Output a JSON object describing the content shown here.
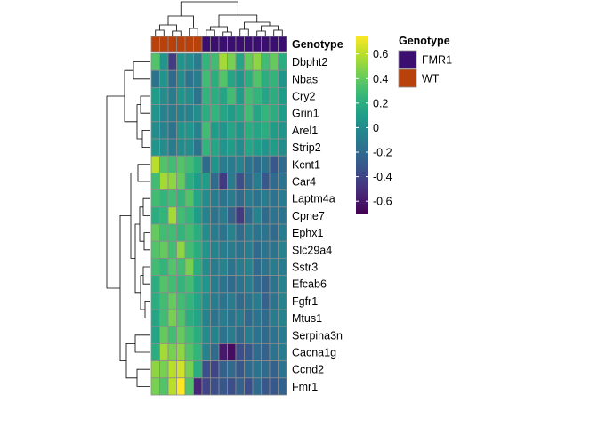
{
  "chart_data": {
    "type": "heatmap",
    "rows": [
      "Dbpht2",
      "Nbas",
      "Cry2",
      "Grin1",
      "Arel1",
      "Strip2",
      "Kcnt1",
      "Car4",
      "Laptm4a",
      "Cpne7",
      "Ephx1",
      "Slc29a4",
      "Sstr3",
      "Efcab6",
      "Fgfr1",
      "Mtus1",
      "Serpina3n",
      "Cacna1g",
      "Ccnd2",
      "Fmr1"
    ],
    "columns": [
      "WT",
      "WT",
      "WT",
      "WT",
      "WT",
      "WT",
      "FMR1",
      "FMR1",
      "FMR1",
      "FMR1",
      "FMR1",
      "FMR1",
      "FMR1",
      "FMR1",
      "FMR1",
      "FMR1"
    ],
    "values": [
      [
        0.35,
        0.05,
        -0.45,
        0.05,
        0.0,
        -0.1,
        0.25,
        0.3,
        0.55,
        0.45,
        0.15,
        0.4,
        0.5,
        0.3,
        0.4,
        0.2
      ],
      [
        -0.15,
        0.05,
        -0.2,
        0.0,
        -0.15,
        -0.1,
        0.3,
        0.2,
        0.35,
        0.15,
        0.05,
        0.2,
        0.35,
        0.2,
        0.25,
        0.05
      ],
      [
        0.1,
        0.0,
        -0.1,
        0.05,
        0.0,
        -0.15,
        0.25,
        0.2,
        0.15,
        0.3,
        0.1,
        0.3,
        0.25,
        0.15,
        0.2,
        0.1
      ],
      [
        0.05,
        -0.05,
        -0.1,
        -0.05,
        -0.05,
        0.0,
        0.2,
        0.25,
        0.15,
        0.1,
        0.15,
        0.3,
        0.15,
        0.25,
        0.2,
        0.1
      ],
      [
        0.0,
        -0.05,
        -0.15,
        0.05,
        0.05,
        -0.05,
        0.3,
        0.1,
        0.05,
        0.15,
        0.05,
        0.2,
        0.15,
        0.2,
        0.1,
        0.05
      ],
      [
        0.05,
        0.0,
        -0.1,
        0.0,
        0.0,
        -0.15,
        0.25,
        0.15,
        0.05,
        0.1,
        0.0,
        0.15,
        0.1,
        0.05,
        0.1,
        0.0
      ],
      [
        0.6,
        0.35,
        0.3,
        0.35,
        0.3,
        0.2,
        -0.2,
        0.05,
        -0.1,
        -0.1,
        -0.05,
        -0.15,
        -0.2,
        -0.15,
        -0.3,
        -0.2
      ],
      [
        0.3,
        0.55,
        0.5,
        0.4,
        0.2,
        0.1,
        0.1,
        -0.2,
        -0.45,
        -0.1,
        -0.35,
        -0.2,
        -0.1,
        -0.3,
        -0.2,
        -0.15
      ],
      [
        0.3,
        0.25,
        0.3,
        0.25,
        0.35,
        0.15,
        0.0,
        -0.1,
        -0.15,
        -0.1,
        -0.2,
        -0.1,
        -0.15,
        -0.1,
        -0.15,
        -0.1
      ],
      [
        0.2,
        0.25,
        0.55,
        0.3,
        0.25,
        0.1,
        -0.05,
        -0.15,
        -0.1,
        -0.25,
        -0.45,
        -0.2,
        -0.05,
        -0.2,
        -0.15,
        -0.15
      ],
      [
        0.4,
        0.3,
        0.3,
        0.25,
        0.3,
        0.2,
        0.0,
        -0.1,
        -0.15,
        -0.05,
        -0.2,
        -0.1,
        -0.15,
        -0.15,
        -0.2,
        -0.1
      ],
      [
        0.35,
        0.4,
        0.3,
        0.5,
        0.3,
        0.2,
        0.05,
        -0.05,
        -0.1,
        -0.1,
        -0.15,
        -0.1,
        -0.2,
        -0.15,
        -0.15,
        -0.05
      ],
      [
        0.3,
        0.25,
        0.35,
        0.3,
        0.45,
        0.2,
        0.0,
        -0.1,
        -0.05,
        -0.15,
        -0.1,
        -0.05,
        -0.2,
        -0.15,
        -0.1,
        -0.1
      ],
      [
        0.2,
        0.35,
        0.3,
        0.25,
        0.3,
        0.15,
        0.05,
        -0.1,
        -0.15,
        -0.2,
        -0.15,
        -0.1,
        -0.2,
        -0.25,
        -0.15,
        -0.05
      ],
      [
        0.2,
        0.3,
        0.4,
        0.3,
        0.25,
        0.15,
        0.0,
        -0.1,
        -0.15,
        -0.1,
        -0.2,
        -0.15,
        -0.1,
        -0.25,
        -0.15,
        -0.05
      ],
      [
        0.15,
        0.3,
        0.45,
        0.35,
        0.2,
        0.15,
        -0.05,
        -0.15,
        -0.1,
        -0.15,
        -0.1,
        -0.2,
        -0.15,
        -0.2,
        -0.1,
        -0.05
      ],
      [
        0.15,
        0.4,
        0.3,
        0.4,
        0.3,
        0.2,
        0.0,
        -0.05,
        -0.15,
        -0.1,
        -0.2,
        -0.1,
        -0.15,
        -0.2,
        -0.15,
        -0.1
      ],
      [
        0.2,
        0.55,
        0.45,
        0.5,
        0.35,
        0.25,
        -0.05,
        -0.2,
        -0.6,
        -0.65,
        -0.35,
        -0.3,
        -0.2,
        -0.25,
        -0.15,
        -0.1
      ],
      [
        0.5,
        0.45,
        0.6,
        0.65,
        0.45,
        0.2,
        -0.35,
        -0.4,
        -0.25,
        -0.2,
        -0.3,
        -0.2,
        -0.15,
        -0.2,
        -0.25,
        -0.15
      ],
      [
        0.45,
        0.35,
        0.6,
        0.75,
        0.35,
        -0.55,
        -0.4,
        -0.35,
        -0.3,
        -0.35,
        -0.25,
        -0.35,
        -0.2,
        -0.3,
        -0.3,
        -0.25
      ]
    ],
    "annotation": {
      "title": "Genotype",
      "levels": [
        {
          "name": "FMR1",
          "color": "#3b0f70"
        },
        {
          "name": "WT",
          "color": "#b8410c"
        }
      ]
    },
    "colorbar": {
      "range": [
        -0.7,
        0.75
      ],
      "ticks": [
        "0.6",
        "0.4",
        "0.2",
        "0",
        "-0.2",
        "-0.4",
        "-0.6"
      ],
      "tick_values": [
        0.6,
        0.4,
        0.2,
        0,
        -0.2,
        -0.4,
        -0.6
      ],
      "colormap": "viridis"
    },
    "dendrograms": {
      "rows": true,
      "columns": true
    },
    "grid": true
  }
}
